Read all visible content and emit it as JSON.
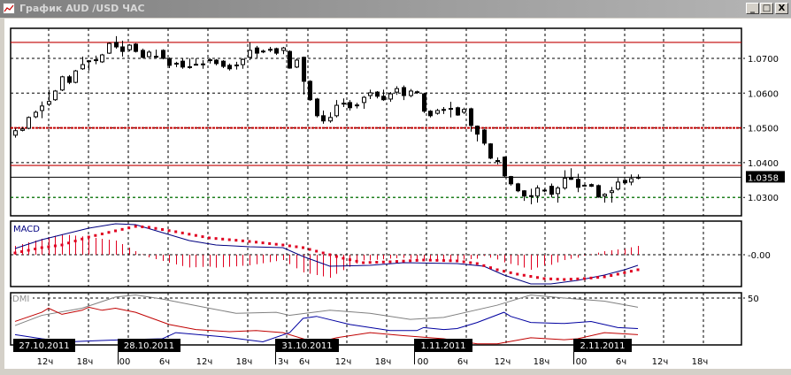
{
  "window": {
    "title": "График AUD /USD  ЧАС",
    "icon": "chart-window-icon",
    "buttons": [
      {
        "name": "minimize-button",
        "label": "_"
      },
      {
        "name": "maximize-button",
        "label": "□"
      },
      {
        "name": "close-button",
        "label": "X"
      }
    ]
  },
  "colors": {
    "bull_candle": "#ffffff",
    "bear_candle": "#000000",
    "level_red": "#c00000",
    "level_green": "#008000",
    "macd_main": "#000080",
    "macd_signal": "#e00020",
    "macd_histogram": "#e00020",
    "dmi_adx": "#808080",
    "dmi_plus": "#c00000",
    "dmi_minus": "#0000a0"
  },
  "chart_data": [
    {
      "type": "candlestick",
      "title": "",
      "price_ticks": [
        "1.0700",
        "1.0600",
        "1.0500",
        "1.0400",
        "1.0300"
      ],
      "price_tick_values": [
        1.07,
        1.06,
        1.05,
        1.04,
        1.03
      ],
      "current_price_label": "1.0358",
      "current_price": 1.0358,
      "grid": true,
      "levels": [
        {
          "value": 1.0746,
          "color": "#c00000",
          "style": "solid"
        },
        {
          "value": 1.05,
          "color": "#c00000",
          "style": "dotted-thick"
        },
        {
          "value": 1.0392,
          "color": "#c00000",
          "style": "solid"
        },
        {
          "value": 1.03,
          "color": "#008000",
          "style": "dashed"
        }
      ],
      "ohlc": [
        [
          1.0479,
          1.0498,
          1.0472,
          1.0492
        ],
        [
          1.0493,
          1.0503,
          1.049,
          1.0497
        ],
        [
          1.0499,
          1.0533,
          1.0496,
          1.053
        ],
        [
          1.0532,
          1.055,
          1.0528,
          1.0545
        ],
        [
          1.055,
          1.0576,
          1.0528,
          1.0563
        ],
        [
          1.0568,
          1.0609,
          1.0563,
          1.0576
        ],
        [
          1.0581,
          1.0609,
          1.0578,
          1.0606
        ],
        [
          1.0609,
          1.065,
          1.0606,
          1.0647
        ],
        [
          1.0647,
          1.0652,
          1.0626,
          1.0631
        ],
        [
          1.0631,
          1.0667,
          1.0628,
          1.0664
        ],
        [
          1.067,
          1.0705,
          1.0667,
          1.0682
        ],
        [
          1.0691,
          1.0695,
          1.0665,
          1.0693
        ],
        [
          1.0694,
          1.0708,
          1.0683,
          1.0696
        ],
        [
          1.069,
          1.0713,
          1.0687,
          1.071
        ],
        [
          1.0715,
          1.0746,
          1.0713,
          1.0743
        ],
        [
          1.0746,
          1.0764,
          1.0728,
          1.0733
        ],
        [
          1.0733,
          1.0751,
          1.0705,
          1.072
        ],
        [
          1.0725,
          1.0741,
          1.072,
          1.0738
        ],
        [
          1.0741,
          1.0744,
          1.0717,
          1.072
        ],
        [
          1.0723,
          1.0728,
          1.07,
          1.0703
        ],
        [
          1.0705,
          1.0723,
          1.0703,
          1.0718
        ],
        [
          1.0704,
          1.0725,
          1.07,
          1.0706
        ],
        [
          1.0723,
          1.0726,
          1.0697,
          1.07
        ],
        [
          1.07,
          1.0703,
          1.0672,
          1.068
        ],
        [
          1.0685,
          1.069,
          1.0675,
          1.0686
        ],
        [
          1.0692,
          1.07,
          1.067,
          1.0675
        ],
        [
          1.0674,
          1.07,
          1.067,
          1.0676
        ],
        [
          1.0682,
          1.07,
          1.068,
          1.0683
        ],
        [
          1.0683,
          1.0695,
          1.067,
          1.0684
        ],
        [
          1.0694,
          1.07,
          1.0685,
          1.0696
        ],
        [
          1.0695,
          1.0698,
          1.068,
          1.0685
        ],
        [
          1.0692,
          1.0695,
          1.0672,
          1.0677
        ],
        [
          1.068,
          1.0685,
          1.0665,
          1.067
        ],
        [
          1.0679,
          1.069,
          1.0668,
          1.0681
        ],
        [
          1.0682,
          1.07,
          1.067,
          1.0697
        ],
        [
          1.0703,
          1.0746,
          1.0695,
          1.0723
        ],
        [
          1.073,
          1.0736,
          1.07,
          1.0715
        ],
        [
          1.0719,
          1.0725,
          1.0715,
          1.0721
        ],
        [
          1.0724,
          1.0733,
          1.0718,
          1.0726
        ],
        [
          1.0728,
          1.0731,
          1.071,
          1.0715
        ],
        [
          1.0723,
          1.0733,
          1.0712,
          1.073
        ],
        [
          1.072,
          1.0723,
          1.067,
          1.0672
        ],
        [
          1.0675,
          1.07,
          1.0672,
          1.0695
        ],
        [
          1.0703,
          1.0705,
          1.0596,
          1.0634
        ],
        [
          1.0634,
          1.0637,
          1.0578,
          1.0581
        ],
        [
          1.0583,
          1.0586,
          1.053,
          1.0535
        ],
        [
          1.0535,
          1.055,
          1.0512,
          1.052
        ],
        [
          1.052,
          1.0545,
          1.0515,
          1.053
        ],
        [
          1.0535,
          1.058,
          1.053,
          1.0565
        ],
        [
          1.0569,
          1.0585,
          1.056,
          1.0571
        ],
        [
          1.0573,
          1.058,
          1.055,
          1.0558
        ],
        [
          1.0564,
          1.0572,
          1.0556,
          1.0566
        ],
        [
          1.0573,
          1.0592,
          1.0555,
          1.0588
        ],
        [
          1.0593,
          1.061,
          1.0583,
          1.0601
        ],
        [
          1.0603,
          1.0606,
          1.0585,
          1.0591
        ],
        [
          1.0591,
          1.061,
          1.0578,
          1.0581
        ],
        [
          1.0583,
          1.0603,
          1.0575,
          1.0598
        ],
        [
          1.0603,
          1.062,
          1.0595,
          1.0613
        ],
        [
          1.0616,
          1.0622,
          1.058,
          1.0593
        ],
        [
          1.0593,
          1.0612,
          1.0588,
          1.0606
        ],
        [
          1.0602,
          1.0607,
          1.0598,
          1.0604
        ],
        [
          1.0598,
          1.0601,
          1.0543,
          1.0548
        ],
        [
          1.0548,
          1.0551,
          1.053,
          1.0535
        ],
        [
          1.0542,
          1.0555,
          1.0538,
          1.055
        ],
        [
          1.0552,
          1.056,
          1.054,
          1.0553
        ],
        [
          1.0554,
          1.0575,
          1.053,
          1.0556
        ],
        [
          1.0558,
          1.0561,
          1.0535,
          1.0537
        ],
        [
          1.0545,
          1.0558,
          1.054,
          1.0553
        ],
        [
          1.0555,
          1.0558,
          1.0489,
          1.0507
        ],
        [
          1.0505,
          1.0507,
          1.0461,
          1.0482
        ],
        [
          1.0494,
          1.0497,
          1.045,
          1.0456
        ],
        [
          1.0454,
          1.0456,
          1.041,
          1.0413
        ],
        [
          1.0406,
          1.0415,
          1.0395,
          1.0405
        ],
        [
          1.0416,
          1.0418,
          1.0358,
          1.0362
        ],
        [
          1.036,
          1.0362,
          1.0334,
          1.0339
        ],
        [
          1.0339,
          1.0342,
          1.0315,
          1.0319
        ],
        [
          1.0319,
          1.0321,
          1.029,
          1.0304
        ],
        [
          1.0305,
          1.0325,
          1.028,
          1.0304
        ],
        [
          1.0304,
          1.0335,
          1.0285,
          1.0327
        ],
        [
          1.032,
          1.0325,
          1.0315,
          1.0321
        ],
        [
          1.0332,
          1.034,
          1.03,
          1.0309
        ],
        [
          1.0311,
          1.0332,
          1.0285,
          1.0327
        ],
        [
          1.0327,
          1.0378,
          1.0322,
          1.0355
        ],
        [
          1.0357,
          1.0384,
          1.035,
          1.0352
        ],
        [
          1.0352,
          1.0368,
          1.0315,
          1.0329
        ],
        [
          1.0334,
          1.0337,
          1.0332,
          1.0335
        ],
        [
          1.0337,
          1.034,
          1.033,
          1.0332
        ],
        [
          1.0334,
          1.0337,
          1.0299,
          1.0301
        ],
        [
          1.0304,
          1.0312,
          1.0285,
          1.0309
        ],
        [
          1.0314,
          1.033,
          1.0285,
          1.0319
        ],
        [
          1.0324,
          1.0356,
          1.032,
          1.0344
        ],
        [
          1.0349,
          1.0352,
          1.0338,
          1.0342
        ],
        [
          1.0344,
          1.0366,
          1.0335,
          1.0354
        ],
        [
          1.0357,
          1.0366,
          1.0352,
          1.0358
        ]
      ]
    },
    {
      "type": "line",
      "label": "MACD",
      "zero_tick": "-0.00",
      "main": [
        [
          0,
          0.0007
        ],
        [
          4,
          0.0017
        ],
        [
          11,
          0.003
        ],
        [
          15,
          0.0035
        ],
        [
          18,
          0.0034
        ],
        [
          22,
          0.0025
        ],
        [
          26,
          0.0016
        ],
        [
          30,
          0.0011
        ],
        [
          35,
          0.0009
        ],
        [
          40,
          0.0008
        ],
        [
          43,
          -0.0002
        ],
        [
          47,
          -0.0013
        ],
        [
          53,
          -0.0012
        ],
        [
          58,
          -0.0009
        ],
        [
          66,
          -0.001
        ],
        [
          70,
          -0.0013
        ],
        [
          73,
          -0.0023
        ],
        [
          77,
          -0.0033
        ],
        [
          80,
          -0.0033
        ],
        [
          84,
          -0.0029
        ],
        [
          88,
          -0.0023
        ],
        [
          91,
          -0.0017
        ],
        [
          93,
          -0.0012
        ]
      ],
      "signal": [
        [
          0,
          0.0002
        ],
        [
          4,
          0.0008
        ],
        [
          7,
          0.0011
        ],
        [
          11,
          0.002
        ],
        [
          15,
          0.0027
        ],
        [
          18,
          0.0032
        ],
        [
          20,
          0.0031
        ],
        [
          24,
          0.0026
        ],
        [
          29,
          0.0019
        ],
        [
          35,
          0.0015
        ],
        [
          40,
          0.0011
        ],
        [
          43,
          0.0008
        ],
        [
          46,
          0.0002
        ],
        [
          49,
          -0.0004
        ],
        [
          52,
          -0.0009
        ],
        [
          56,
          -0.0008
        ],
        [
          61,
          -0.0006
        ],
        [
          66,
          -0.0007
        ],
        [
          69,
          -0.001
        ],
        [
          72,
          -0.0017
        ],
        [
          75,
          -0.0022
        ],
        [
          79,
          -0.0027
        ],
        [
          82,
          -0.0028
        ],
        [
          85,
          -0.0027
        ],
        [
          88,
          -0.0025
        ],
        [
          90,
          -0.0022
        ],
        [
          93,
          -0.0017
        ]
      ]
    },
    {
      "type": "line",
      "label": "DMI",
      "tick": "50",
      "adx": [
        [
          0,
          23
        ],
        [
          4,
          33
        ],
        [
          10,
          40
        ],
        [
          15,
          51
        ],
        [
          18,
          53
        ],
        [
          22,
          49
        ],
        [
          29,
          40
        ],
        [
          33,
          35
        ],
        [
          39,
          36
        ],
        [
          41,
          33
        ],
        [
          47,
          38
        ],
        [
          53,
          35
        ],
        [
          59,
          29
        ],
        [
          64,
          31
        ],
        [
          72,
          43
        ],
        [
          77,
          53
        ],
        [
          82,
          50
        ],
        [
          88,
          47
        ],
        [
          93,
          41
        ]
      ],
      "plus_di": [
        [
          0,
          27
        ],
        [
          4,
          36
        ],
        [
          5,
          40
        ],
        [
          7,
          34
        ],
        [
          10,
          38
        ],
        [
          11,
          41
        ],
        [
          13,
          38
        ],
        [
          15,
          40
        ],
        [
          18,
          36
        ],
        [
          23,
          24
        ],
        [
          27,
          19
        ],
        [
          32,
          17
        ],
        [
          36,
          18
        ],
        [
          40,
          16
        ],
        [
          43,
          10
        ],
        [
          45,
          6
        ],
        [
          48,
          11
        ],
        [
          53,
          16
        ],
        [
          58,
          13
        ],
        [
          64,
          10
        ],
        [
          69,
          5
        ],
        [
          72,
          5
        ],
        [
          77,
          11
        ],
        [
          82,
          9
        ],
        [
          84,
          10
        ],
        [
          88,
          16
        ],
        [
          93,
          14
        ]
      ],
      "minus_di": [
        [
          0,
          14
        ],
        [
          4,
          10
        ],
        [
          8,
          7
        ],
        [
          12,
          8
        ],
        [
          16,
          9
        ],
        [
          22,
          10
        ],
        [
          24,
          16
        ],
        [
          31,
          12
        ],
        [
          37,
          7
        ],
        [
          41,
          16
        ],
        [
          43,
          30
        ],
        [
          45,
          32
        ],
        [
          50,
          24
        ],
        [
          56,
          18
        ],
        [
          60,
          18
        ],
        [
          61,
          21
        ],
        [
          64,
          19
        ],
        [
          66,
          20
        ],
        [
          69,
          26
        ],
        [
          73,
          36
        ],
        [
          74,
          32
        ],
        [
          77,
          26
        ],
        [
          82,
          25
        ],
        [
          86,
          27
        ],
        [
          90,
          21
        ],
        [
          93,
          20
        ]
      ]
    }
  ],
  "time_axis": {
    "dates": [
      "27.10.2011",
      "28.10.2011",
      "31.10.2011",
      "1.11.2011",
      "2.11.2011"
    ],
    "ticks": [
      "12ч",
      "18ч",
      "00",
      "6ч",
      "12ч",
      "18ч",
      "3ч",
      "6ч",
      "12ч",
      "18ч",
      "00",
      "6ч",
      "12ч",
      "18ч",
      "00",
      "6ч",
      "12ч",
      "18ч"
    ]
  }
}
